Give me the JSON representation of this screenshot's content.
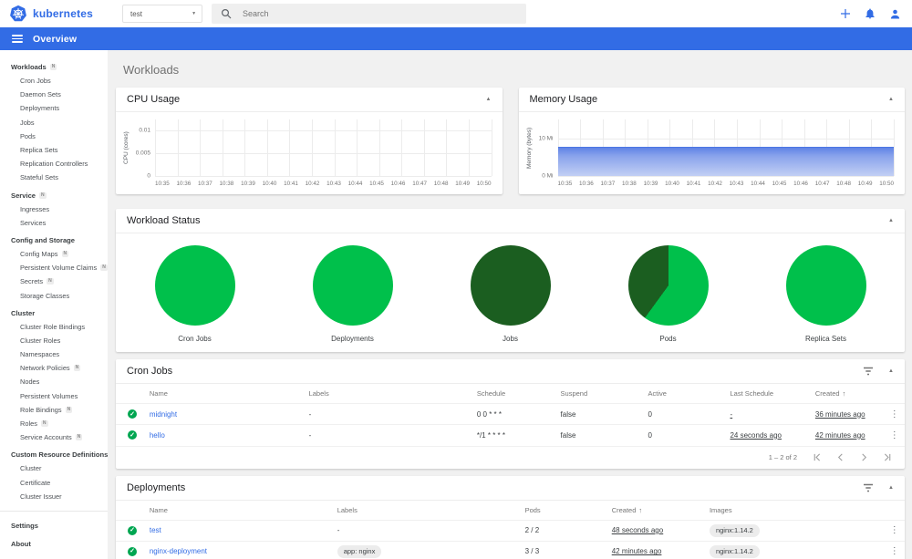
{
  "brand": {
    "name": "kubernetes"
  },
  "header": {
    "namespace_selector": {
      "value": "test"
    },
    "search": {
      "placeholder": "Search"
    }
  },
  "toolbar": {
    "title": "Overview"
  },
  "sidebar": {
    "badge_char": "N",
    "sections": [
      {
        "label": "Workloads",
        "badge": true,
        "items": [
          {
            "label": "Cron Jobs"
          },
          {
            "label": "Daemon Sets"
          },
          {
            "label": "Deployments"
          },
          {
            "label": "Jobs"
          },
          {
            "label": "Pods"
          },
          {
            "label": "Replica Sets"
          },
          {
            "label": "Replication Controllers"
          },
          {
            "label": "Stateful Sets"
          }
        ]
      },
      {
        "label": "Service",
        "badge": true,
        "items": [
          {
            "label": "Ingresses"
          },
          {
            "label": "Services"
          }
        ]
      },
      {
        "label": "Config and Storage",
        "badge": false,
        "items": [
          {
            "label": "Config Maps",
            "badge": true
          },
          {
            "label": "Persistent Volume Claims",
            "badge": true
          },
          {
            "label": "Secrets",
            "badge": true
          },
          {
            "label": "Storage Classes"
          }
        ]
      },
      {
        "label": "Cluster",
        "badge": false,
        "items": [
          {
            "label": "Cluster Role Bindings"
          },
          {
            "label": "Cluster Roles"
          },
          {
            "label": "Namespaces"
          },
          {
            "label": "Network Policies",
            "badge": true
          },
          {
            "label": "Nodes"
          },
          {
            "label": "Persistent Volumes"
          },
          {
            "label": "Role Bindings",
            "badge": true
          },
          {
            "label": "Roles",
            "badge": true
          },
          {
            "label": "Service Accounts",
            "badge": true
          }
        ]
      },
      {
        "label": "Custom Resource Definitions",
        "badge": false,
        "items": [
          {
            "label": "Cluster"
          },
          {
            "label": "Certificate"
          },
          {
            "label": "Cluster Issuer"
          }
        ]
      }
    ],
    "footer_items": [
      {
        "label": "Settings"
      },
      {
        "label": "About"
      }
    ]
  },
  "page": {
    "title": "Workloads"
  },
  "chart_data": [
    {
      "type": "line",
      "title": "CPU Usage",
      "ylabel": "CPU (cores)",
      "x": [
        "10:35",
        "10:36",
        "10:37",
        "10:38",
        "10:39",
        "10:40",
        "10:41",
        "10:42",
        "10:43",
        "10:44",
        "10:45",
        "10:46",
        "10:47",
        "10:48",
        "10:49",
        "10:50"
      ],
      "yticks": [
        {
          "value": 0,
          "label": "0"
        },
        {
          "value": 0.005,
          "label": "0.005"
        },
        {
          "value": 0.01,
          "label": "0.01"
        }
      ],
      "ylim": [
        0,
        0.0125
      ],
      "grid": true,
      "legend": false,
      "series": [
        {
          "name": "CPU usage",
          "values": [
            0,
            0,
            0,
            0,
            0,
            0,
            0,
            0,
            0,
            0,
            0,
            0,
            0,
            0,
            0,
            0
          ]
        }
      ]
    },
    {
      "type": "area",
      "title": "Memory Usage",
      "ylabel": "Memory (bytes)",
      "x": [
        "10:35",
        "10:36",
        "10:37",
        "10:38",
        "10:39",
        "10:40",
        "10:41",
        "10:42",
        "10:43",
        "10:44",
        "10:45",
        "10:46",
        "10:47",
        "10:48",
        "10:49",
        "10:50"
      ],
      "yticks": [
        {
          "value": 0,
          "label": "0 Mi"
        },
        {
          "value": 10,
          "label": "10 Mi"
        }
      ],
      "ylim": [
        0,
        15
      ],
      "unit": "Mi",
      "grid": true,
      "legend": false,
      "series": [
        {
          "name": "Memory usage",
          "values": [
            7.7,
            7.7,
            7.7,
            7.7,
            7.7,
            7.7,
            7.7,
            7.7,
            7.7,
            7.7,
            7.7,
            7.7,
            7.7,
            7.7,
            7.7,
            7.7
          ]
        }
      ]
    },
    {
      "type": "pie",
      "title": "Workload Status",
      "pies": [
        {
          "label": "Cron Jobs",
          "segments": [
            {
              "name": "running",
              "fraction": 1,
              "color": "#00c04b"
            }
          ]
        },
        {
          "label": "Deployments",
          "segments": [
            {
              "name": "running",
              "fraction": 1,
              "color": "#00c04b"
            }
          ]
        },
        {
          "label": "Jobs",
          "segments": [
            {
              "name": "succeeded",
              "fraction": 1,
              "color": "#1b5e20"
            }
          ]
        },
        {
          "label": "Pods",
          "segments": [
            {
              "name": "running",
              "fraction": 0.6,
              "color": "#00c04b"
            },
            {
              "name": "succeeded",
              "fraction": 0.4,
              "color": "#1b5e20"
            }
          ]
        },
        {
          "label": "Replica Sets",
          "segments": [
            {
              "name": "running",
              "fraction": 1,
              "color": "#00c04b"
            }
          ]
        }
      ]
    }
  ],
  "cron_jobs": {
    "title": "Cron Jobs",
    "columns": [
      "Name",
      "Labels",
      "Schedule",
      "Suspend",
      "Active",
      "Last Schedule",
      "Created"
    ],
    "sort_column": "Created",
    "rows": [
      {
        "name": "midnight",
        "labels": "-",
        "schedule": "0 0 * * *",
        "suspend": "false",
        "active": "0",
        "last_schedule": "-",
        "created": "36 minutes ago"
      },
      {
        "name": "hello",
        "labels": "-",
        "schedule": "*/1 * * * *",
        "suspend": "false",
        "active": "0",
        "last_schedule": "24 seconds ago",
        "created": "42 minutes ago"
      }
    ],
    "pagination": {
      "range_label": "1 – 2 of 2"
    }
  },
  "deployments": {
    "title": "Deployments",
    "columns": [
      "Name",
      "Labels",
      "Pods",
      "Created",
      "Images"
    ],
    "sort_column": "Created",
    "rows": [
      {
        "name": "test",
        "labels": "-",
        "pods": "2 / 2",
        "created": "48 seconds ago",
        "images": "nginx:1.14.2"
      },
      {
        "name": "nginx-deployment",
        "labels": "app: nginx",
        "pods": "3 / 3",
        "created": "42 minutes ago",
        "images": "nginx:1.14.2"
      }
    ]
  },
  "colors": {
    "accent": "#326ce5",
    "success": "#00a651",
    "pie_green": "#00c04b",
    "pie_dark_green": "#1b5e20"
  }
}
